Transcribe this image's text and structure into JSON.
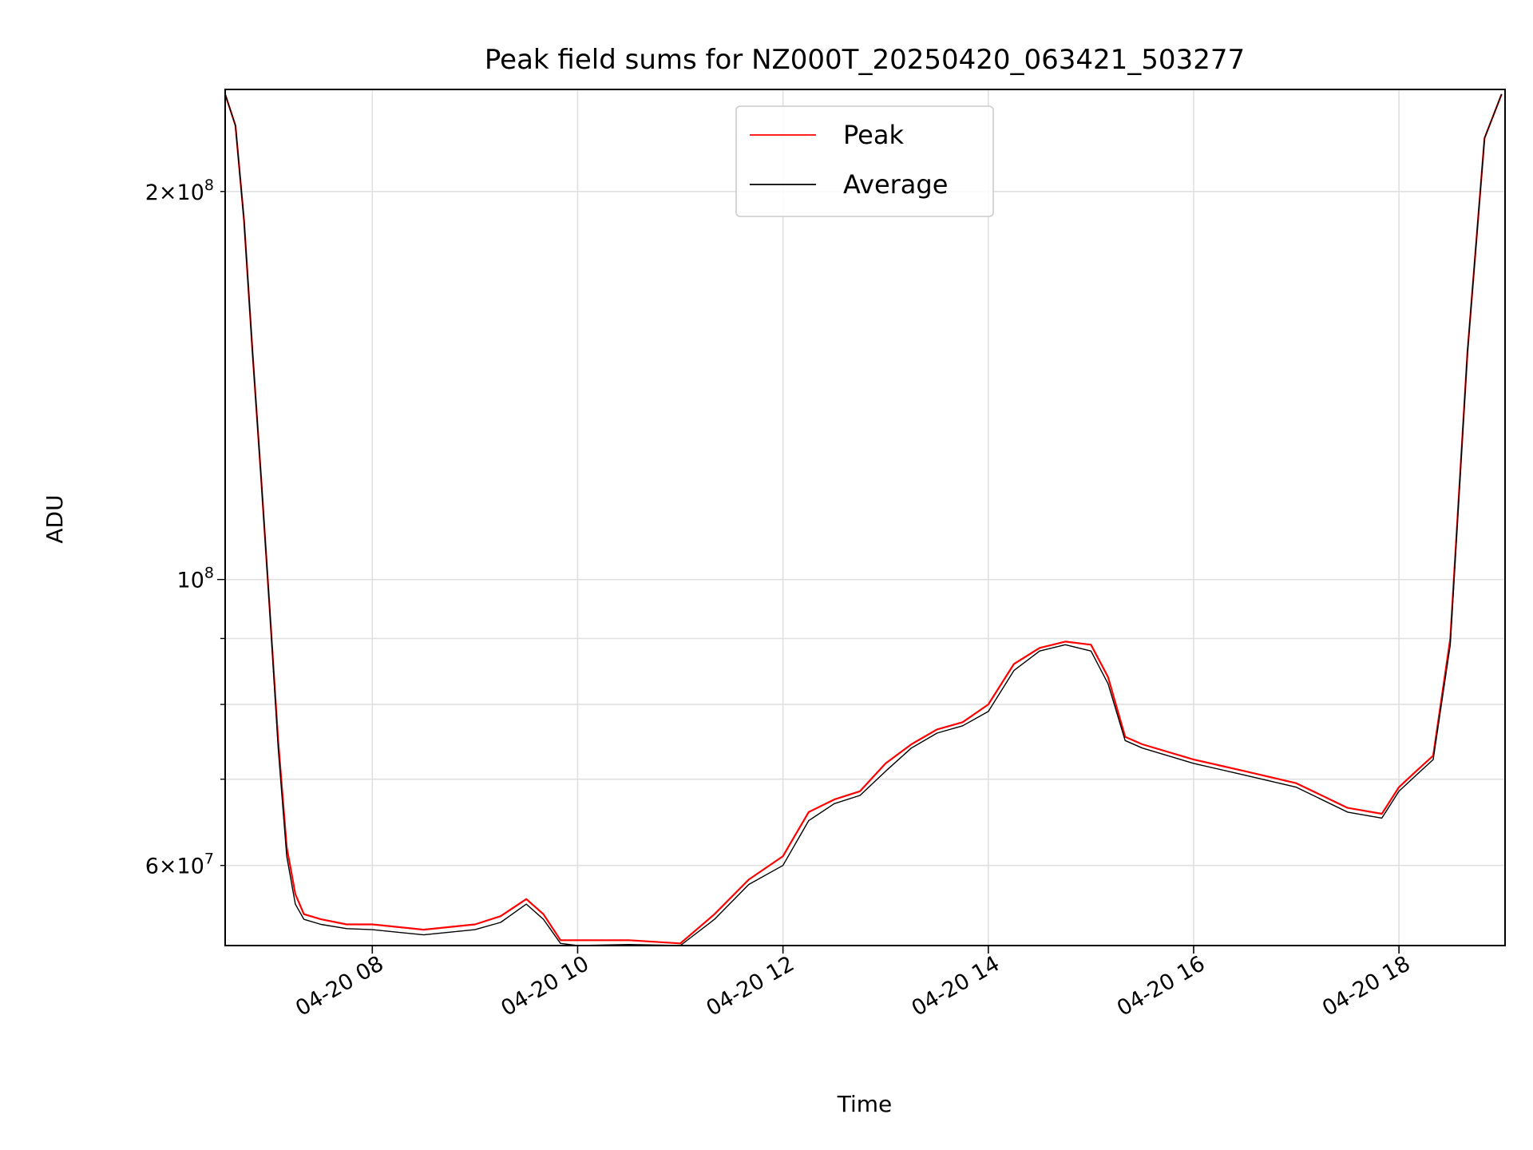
{
  "chart_data": {
    "type": "line",
    "title": "Peak field sums for NZ000T_20250420_063421_503277",
    "xlabel": "Time",
    "ylabel": "ADU",
    "y_scale": "log",
    "ylim": [
      52000000,
      240000000
    ],
    "xlim": [
      "2025-04-20 06:34",
      "2025-04-20 19:02"
    ],
    "grid": true,
    "legend_position": "upper center",
    "x_ticks": [
      {
        "value": "2025-04-20 08:00",
        "label": "04-20 08"
      },
      {
        "value": "2025-04-20 10:00",
        "label": "04-20 10"
      },
      {
        "value": "2025-04-20 12:00",
        "label": "04-20 12"
      },
      {
        "value": "2025-04-20 14:00",
        "label": "04-20 14"
      },
      {
        "value": "2025-04-20 16:00",
        "label": "04-20 16"
      },
      {
        "value": "2025-04-20 18:00",
        "label": "04-20 18"
      }
    ],
    "y_ticks_major": [
      {
        "value": 100000000,
        "label": "10^8"
      }
    ],
    "y_ticks_minor_labeled": [
      {
        "value": 60000000,
        "label": "6×10^7"
      },
      {
        "value": 200000000,
        "label": "2×10^8"
      }
    ],
    "y_ticks_minor_unlabeled": [
      70000000,
      80000000,
      90000000
    ],
    "series": [
      {
        "name": "Peak",
        "color": "#ff0000",
        "x": [
          "2025-04-20 06:34",
          "2025-04-20 06:40",
          "2025-04-20 06:45",
          "2025-04-20 06:50",
          "2025-04-20 06:55",
          "2025-04-20 07:00",
          "2025-04-20 07:05",
          "2025-04-20 07:10",
          "2025-04-20 07:15",
          "2025-04-20 07:20",
          "2025-04-20 07:30",
          "2025-04-20 07:45",
          "2025-04-20 08:00",
          "2025-04-20 08:30",
          "2025-04-20 09:00",
          "2025-04-20 09:15",
          "2025-04-20 09:30",
          "2025-04-20 09:40",
          "2025-04-20 09:50",
          "2025-04-20 10:00",
          "2025-04-20 10:30",
          "2025-04-20 11:00",
          "2025-04-20 11:20",
          "2025-04-20 11:40",
          "2025-04-20 12:00",
          "2025-04-20 12:15",
          "2025-04-20 12:30",
          "2025-04-20 12:45",
          "2025-04-20 13:00",
          "2025-04-20 13:15",
          "2025-04-20 13:30",
          "2025-04-20 13:45",
          "2025-04-20 14:00",
          "2025-04-20 14:15",
          "2025-04-20 14:30",
          "2025-04-20 14:45",
          "2025-04-20 15:00",
          "2025-04-20 15:10",
          "2025-04-20 15:20",
          "2025-04-20 15:30",
          "2025-04-20 16:00",
          "2025-04-20 16:30",
          "2025-04-20 17:00",
          "2025-04-20 17:30",
          "2025-04-20 17:50",
          "2025-04-20 18:00",
          "2025-04-20 18:10",
          "2025-04-20 18:20",
          "2025-04-20 18:30",
          "2025-04-20 18:40",
          "2025-04-20 18:50",
          "2025-04-20 19:00"
        ],
        "y": [
          238000000,
          225000000,
          190000000,
          150000000,
          120000000,
          95000000,
          75000000,
          62000000,
          57000000,
          55000000,
          54500000,
          54000000,
          54000000,
          53500000,
          54000000,
          54800000,
          56500000,
          55000000,
          52500000,
          52500000,
          52500000,
          52200000,
          55000000,
          58500000,
          61000000,
          66000000,
          67500000,
          68500000,
          72000000,
          74500000,
          76500000,
          77500000,
          80000000,
          86000000,
          88500000,
          89500000,
          89000000,
          84000000,
          75500000,
          74500000,
          72500000,
          71000000,
          69500000,
          66500000,
          65800000,
          69000000,
          71000000,
          73000000,
          90000000,
          150000000,
          220000000,
          238000000
        ]
      },
      {
        "name": "Average",
        "color": "#000000",
        "x": [
          "2025-04-20 06:34",
          "2025-04-20 06:40",
          "2025-04-20 06:45",
          "2025-04-20 06:50",
          "2025-04-20 06:55",
          "2025-04-20 07:00",
          "2025-04-20 07:05",
          "2025-04-20 07:10",
          "2025-04-20 07:15",
          "2025-04-20 07:20",
          "2025-04-20 07:30",
          "2025-04-20 07:45",
          "2025-04-20 08:00",
          "2025-04-20 08:30",
          "2025-04-20 09:00",
          "2025-04-20 09:15",
          "2025-04-20 09:30",
          "2025-04-20 09:40",
          "2025-04-20 09:50",
          "2025-04-20 10:00",
          "2025-04-20 10:30",
          "2025-04-20 11:00",
          "2025-04-20 11:20",
          "2025-04-20 11:40",
          "2025-04-20 12:00",
          "2025-04-20 12:15",
          "2025-04-20 12:30",
          "2025-04-20 12:45",
          "2025-04-20 13:00",
          "2025-04-20 13:15",
          "2025-04-20 13:30",
          "2025-04-20 13:45",
          "2025-04-20 14:00",
          "2025-04-20 14:15",
          "2025-04-20 14:30",
          "2025-04-20 14:45",
          "2025-04-20 15:00",
          "2025-04-20 15:10",
          "2025-04-20 15:20",
          "2025-04-20 15:30",
          "2025-04-20 16:00",
          "2025-04-20 16:30",
          "2025-04-20 17:00",
          "2025-04-20 17:30",
          "2025-04-20 17:50",
          "2025-04-20 18:00",
          "2025-04-20 18:10",
          "2025-04-20 18:20",
          "2025-04-20 18:30",
          "2025-04-20 18:40",
          "2025-04-20 18:50",
          "2025-04-20 19:00"
        ],
        "y": [
          238000000,
          225000000,
          190000000,
          150000000,
          120000000,
          95000000,
          74000000,
          61000000,
          56000000,
          54500000,
          54000000,
          53600000,
          53500000,
          53000000,
          53500000,
          54200000,
          56000000,
          54500000,
          52200000,
          52000000,
          52100000,
          52000000,
          54500000,
          58000000,
          60000000,
          65000000,
          67000000,
          68000000,
          71000000,
          74000000,
          76000000,
          77000000,
          79000000,
          85000000,
          88000000,
          89000000,
          88000000,
          83000000,
          75000000,
          74000000,
          72000000,
          70500000,
          69000000,
          66000000,
          65300000,
          68500000,
          70500000,
          72500000,
          89000000,
          150000000,
          220000000,
          238000000
        ]
      }
    ]
  }
}
